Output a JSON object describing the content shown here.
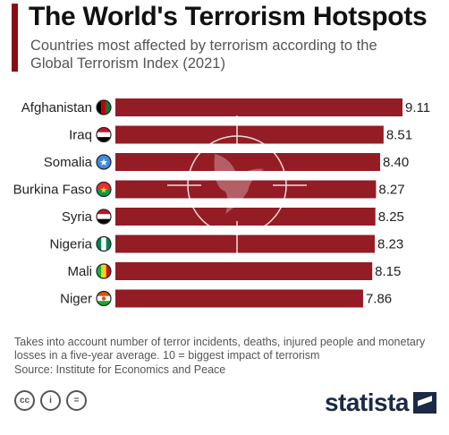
{
  "header": {
    "title": "The World's Terrorism Hotspots",
    "subtitle": "Countries most affected by terrorism according to the Global Terrorism Index (2021)"
  },
  "chart_data": {
    "type": "bar",
    "orientation": "horizontal",
    "categories": [
      "Afghanistan",
      "Iraq",
      "Somalia",
      "Burkina Faso",
      "Syria",
      "Nigeria",
      "Mali",
      "Niger"
    ],
    "values": [
      9.11,
      8.51,
      8.4,
      8.27,
      8.25,
      8.23,
      8.15,
      7.86
    ],
    "value_labels": [
      "9.11",
      "8.51",
      "8.40",
      "8.27",
      "8.25",
      "8.23",
      "8.15",
      "7.86"
    ],
    "xlim": [
      0,
      9.11
    ],
    "bar_color": "#8b0b14",
    "grid": false,
    "legend": "none"
  },
  "flags": [
    "afghanistan-flag-icon",
    "iraq-flag-icon",
    "somalia-flag-icon",
    "burkina-faso-flag-icon",
    "syria-flag-icon",
    "nigeria-flag-icon",
    "mali-flag-icon",
    "niger-flag-icon"
  ],
  "footer": {
    "note": "Takes into account number of terror incidents, deaths, injured people and monetary losses in a five-year average. 10 = biggest impact of terrorism",
    "source": "Source: Institute for Economics and Peace",
    "license_icons": [
      "cc",
      "i",
      "="
    ],
    "brand": "statista"
  },
  "colors": {
    "accent": "#8b0b14",
    "brand": "#1b2a45"
  }
}
